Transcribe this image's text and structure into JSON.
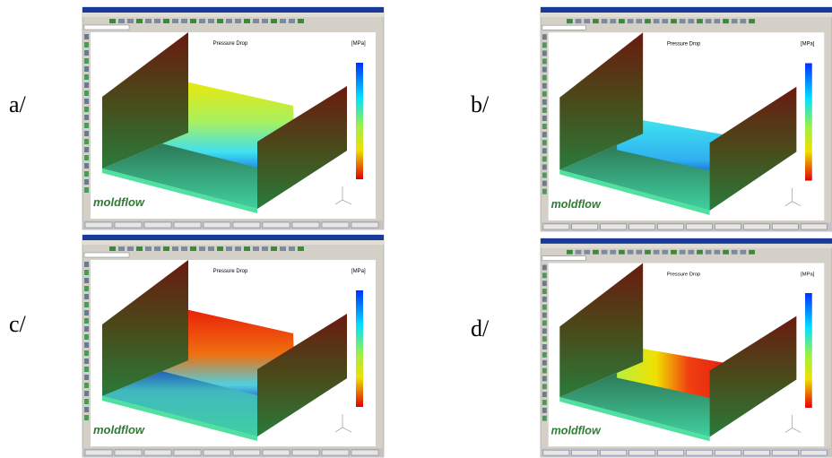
{
  "panels": [
    {
      "label": "a/",
      "title": "Pressure Drop",
      "unit": "[MPa]",
      "logo": "moldflow"
    },
    {
      "label": "b/",
      "title": "Pressure Drop",
      "unit": "[MPa]",
      "logo": "moldflow"
    },
    {
      "label": "c/",
      "title": "Pressure Drop",
      "unit": "[MPa]",
      "logo": "moldflow"
    },
    {
      "label": "d/",
      "title": "Pressure Drop",
      "unit": "[MPa]",
      "logo": "moldflow"
    }
  ]
}
